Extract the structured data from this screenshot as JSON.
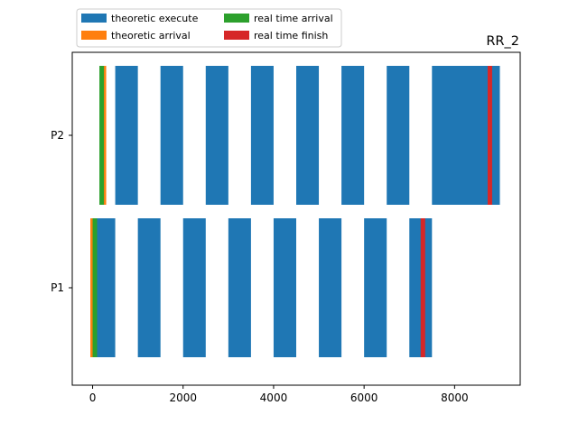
{
  "chart_data": {
    "type": "gantt",
    "title": "RR_2",
    "xlabel": "",
    "ylabel": "",
    "xlim": [
      -450,
      9450
    ],
    "x_ticks": [
      0,
      2000,
      4000,
      6000,
      8000
    ],
    "x_tick_labels": [
      "0",
      "2000",
      "4000",
      "6000",
      "8000"
    ],
    "categories": [
      "P1",
      "P2"
    ],
    "legend": {
      "location": "above-top-left",
      "columns": 2,
      "entries": [
        {
          "label": "theoretic execute",
          "color": "#1f77b4"
        },
        {
          "label": "theoretic arrival",
          "color": "#ff7f0e"
        },
        {
          "label": "real time arrival",
          "color": "#2ca02c"
        },
        {
          "label": "real time finish",
          "color": "#d62728"
        }
      ]
    },
    "series": [
      {
        "name": "theoretic execute",
        "color": "#1f77b4",
        "segments": [
          {
            "process": "P1",
            "start": 0,
            "end": 500
          },
          {
            "process": "P1",
            "start": 1000,
            "end": 1500
          },
          {
            "process": "P1",
            "start": 2000,
            "end": 2500
          },
          {
            "process": "P1",
            "start": 3000,
            "end": 3500
          },
          {
            "process": "P1",
            "start": 4000,
            "end": 4500
          },
          {
            "process": "P1",
            "start": 5000,
            "end": 5500
          },
          {
            "process": "P1",
            "start": 6000,
            "end": 6500
          },
          {
            "process": "P1",
            "start": 7000,
            "end": 7500
          },
          {
            "process": "P2",
            "start": 500,
            "end": 1000
          },
          {
            "process": "P2",
            "start": 1500,
            "end": 2000
          },
          {
            "process": "P2",
            "start": 2500,
            "end": 3000
          },
          {
            "process": "P2",
            "start": 3500,
            "end": 4000
          },
          {
            "process": "P2",
            "start": 4500,
            "end": 5000
          },
          {
            "process": "P2",
            "start": 5500,
            "end": 6000
          },
          {
            "process": "P2",
            "start": 6500,
            "end": 7000
          },
          {
            "process": "P2",
            "start": 7500,
            "end": 9000
          }
        ]
      },
      {
        "name": "theoretic arrival",
        "color": "#ff7f0e",
        "events": [
          {
            "process": "P1",
            "x": 0
          },
          {
            "process": "P2",
            "x": 250
          }
        ]
      },
      {
        "name": "real time arrival",
        "color": "#2ca02c",
        "events": [
          {
            "process": "P1",
            "x": 50
          },
          {
            "process": "P2",
            "x": 200
          }
        ]
      },
      {
        "name": "real time finish",
        "color": "#d62728",
        "events": [
          {
            "process": "P1",
            "x": 7300
          },
          {
            "process": "P2",
            "x": 8780
          }
        ]
      }
    ]
  }
}
